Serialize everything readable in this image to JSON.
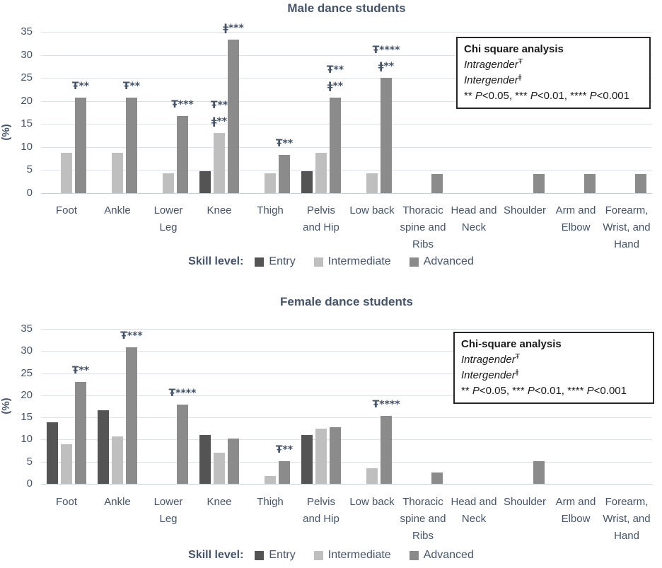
{
  "colors": {
    "text": "#44546A",
    "gridline": "#dbe1ec",
    "zero_line": "#c6cedb",
    "note_border": "#262626",
    "note_text": "#1a1a1a",
    "background": "#ffffff"
  },
  "legend": {
    "label": "Skill level:"
  },
  "chart_data": [
    {
      "type": "bar",
      "title": "Male dance students",
      "ylabel": "(%)",
      "ylim": [
        0,
        35
      ],
      "ytick_step": 5,
      "grid": true,
      "legend_position": "bottom",
      "categories": [
        [
          "Foot"
        ],
        [
          "Ankle"
        ],
        [
          "Lower",
          "Leg"
        ],
        [
          "Knee"
        ],
        [
          "Thigh"
        ],
        [
          "Pelvis",
          "and Hip"
        ],
        [
          "Low back"
        ],
        [
          "Thoracic",
          "spine and",
          "Ribs"
        ],
        [
          "Head and",
          "Neck"
        ],
        [
          "Shoulder"
        ],
        [
          "Arm and",
          "Elbow"
        ],
        [
          "Forearm,",
          "Wrist, and",
          "Hand"
        ]
      ],
      "series": [
        {
          "name": "Entry",
          "color": "#545454",
          "values": [
            0,
            0,
            0,
            4.8,
            0,
            4.8,
            0,
            0,
            0,
            0,
            0,
            0
          ]
        },
        {
          "name": "Intermediate",
          "color": "#bfbfbf",
          "values": [
            8.7,
            8.7,
            4.3,
            13.0,
            4.3,
            8.7,
            4.3,
            0,
            0,
            0,
            0,
            0
          ]
        },
        {
          "name": "Advanced",
          "color": "#8b8b8b",
          "values": [
            20.8,
            20.8,
            16.7,
            33.3,
            8.3,
            20.8,
            25.0,
            4.2,
            0,
            4.2,
            4.2,
            4.2
          ]
        }
      ],
      "annotations": [
        {
          "category": 0,
          "series": 2,
          "lines": [
            "Ŧ**"
          ]
        },
        {
          "category": 1,
          "series": 2,
          "lines": [
            "Ŧ**"
          ]
        },
        {
          "category": 2,
          "series": 2,
          "lines": [
            "Ŧ***"
          ]
        },
        {
          "category": 3,
          "series": 2,
          "lines": [
            "ǂ***"
          ]
        },
        {
          "category": 3,
          "series": 1,
          "lines": [
            "Ŧ**",
            "ǂ**"
          ]
        },
        {
          "category": 4,
          "series": 2,
          "lines": [
            "Ŧ**"
          ]
        },
        {
          "category": 5,
          "series": 2,
          "lines": [
            "Ŧ**",
            "ǂ**"
          ]
        },
        {
          "category": 6,
          "series": 2,
          "lines": [
            "Ŧ****",
            "ǂ**"
          ]
        }
      ],
      "note_box": {
        "title": "Chi square analysis",
        "items": [
          {
            "text": "Intragender",
            "sup": "Ŧ"
          },
          {
            "text": "Intergender",
            "sup": "ǂ"
          }
        ],
        "pvalues": "** P<0.05, *** P<0.01, **** P<0.001"
      }
    },
    {
      "type": "bar",
      "title": "Female dance students",
      "ylabel": "(%)",
      "ylim": [
        0,
        35
      ],
      "ytick_step": 5,
      "grid": true,
      "legend_position": "bottom",
      "categories": [
        [
          "Foot"
        ],
        [
          "Ankle"
        ],
        [
          "Lower",
          "Leg"
        ],
        [
          "Knee"
        ],
        [
          "Thigh"
        ],
        [
          "Pelvis",
          "and Hip"
        ],
        [
          "Low back"
        ],
        [
          "Thoracic",
          "spine and",
          "Ribs"
        ],
        [
          "Head and",
          "Neck"
        ],
        [
          "Shoulder"
        ],
        [
          "Arm and",
          "Elbow"
        ],
        [
          "Forearm,",
          "Wrist, and",
          "Hand"
        ]
      ],
      "series": [
        {
          "name": "Entry",
          "color": "#545454",
          "values": [
            13.9,
            16.7,
            0,
            11.1,
            0,
            11.1,
            0,
            0,
            0,
            0,
            0,
            0
          ]
        },
        {
          "name": "Intermediate",
          "color": "#bfbfbf",
          "values": [
            8.9,
            10.7,
            0,
            7.1,
            1.8,
            12.5,
            3.6,
            0,
            0,
            0,
            0,
            0
          ]
        },
        {
          "name": "Advanced",
          "color": "#8b8b8b",
          "values": [
            23.1,
            30.8,
            17.9,
            10.3,
            5.1,
            12.8,
            15.4,
            2.6,
            0,
            5.1,
            0,
            0
          ]
        }
      ],
      "annotations": [
        {
          "category": 0,
          "series": 2,
          "lines": [
            "Ŧ**"
          ]
        },
        {
          "category": 1,
          "series": 2,
          "lines": [
            "Ŧ***"
          ]
        },
        {
          "category": 2,
          "series": 2,
          "lines": [
            "Ŧ****"
          ]
        },
        {
          "category": 4,
          "series": 2,
          "lines": [
            "Ŧ**"
          ]
        },
        {
          "category": 6,
          "series": 2,
          "lines": [
            "Ŧ****"
          ]
        }
      ],
      "note_box": {
        "title": "Chi-square analysis",
        "items": [
          {
            "text": "Intragender",
            "sup": "Ŧ"
          },
          {
            "text": "Intergender",
            "sup": "ǂ"
          }
        ],
        "pvalues": "** P<0.05, *** P<0.01, **** P<0.001"
      }
    }
  ]
}
